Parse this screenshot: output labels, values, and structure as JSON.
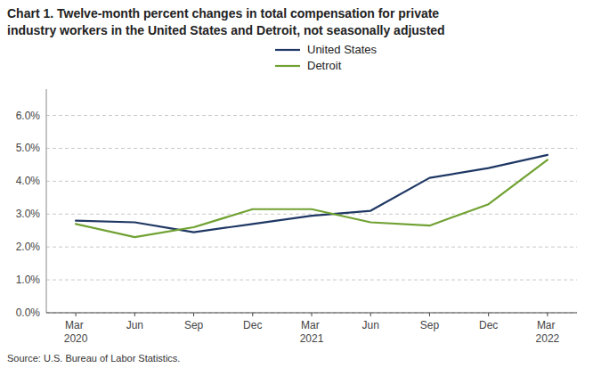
{
  "chart_data": {
    "type": "line",
    "title": "Chart 1. Twelve-month percent changes in total compensation for private",
    "subtitle": "industry workers in the United States and Detroit, not seasonally adjusted",
    "source": "Source: U.S. Bureau of Labor Statistics.",
    "categories": [
      "Mar 2020",
      "Jun",
      "Sep",
      "Dec",
      "Mar 2021",
      "Jun",
      "Sep",
      "Dec",
      "Mar 2022"
    ],
    "series": [
      {
        "name": "United States",
        "color": "#1f3864",
        "values": [
          2.8,
          2.75,
          2.45,
          2.7,
          2.95,
          3.1,
          4.1,
          4.4,
          4.8
        ]
      },
      {
        "name": "Detroit",
        "color": "#70a132",
        "values": [
          2.7,
          2.3,
          2.6,
          3.15,
          3.15,
          2.75,
          2.65,
          3.3,
          4.65
        ]
      }
    ],
    "ylim": [
      0.0,
      6.8
    ],
    "yticks": [
      {
        "value": 0.0,
        "label": "0.0%"
      },
      {
        "value": 1.0,
        "label": "1.0%"
      },
      {
        "value": 2.0,
        "label": "2.0%"
      },
      {
        "value": 3.0,
        "label": "3.0%"
      },
      {
        "value": 4.0,
        "label": "4.0%"
      },
      {
        "value": 5.0,
        "label": "5.0%"
      },
      {
        "value": 6.0,
        "label": "6.0%"
      }
    ],
    "grid": true,
    "legend": "top"
  }
}
